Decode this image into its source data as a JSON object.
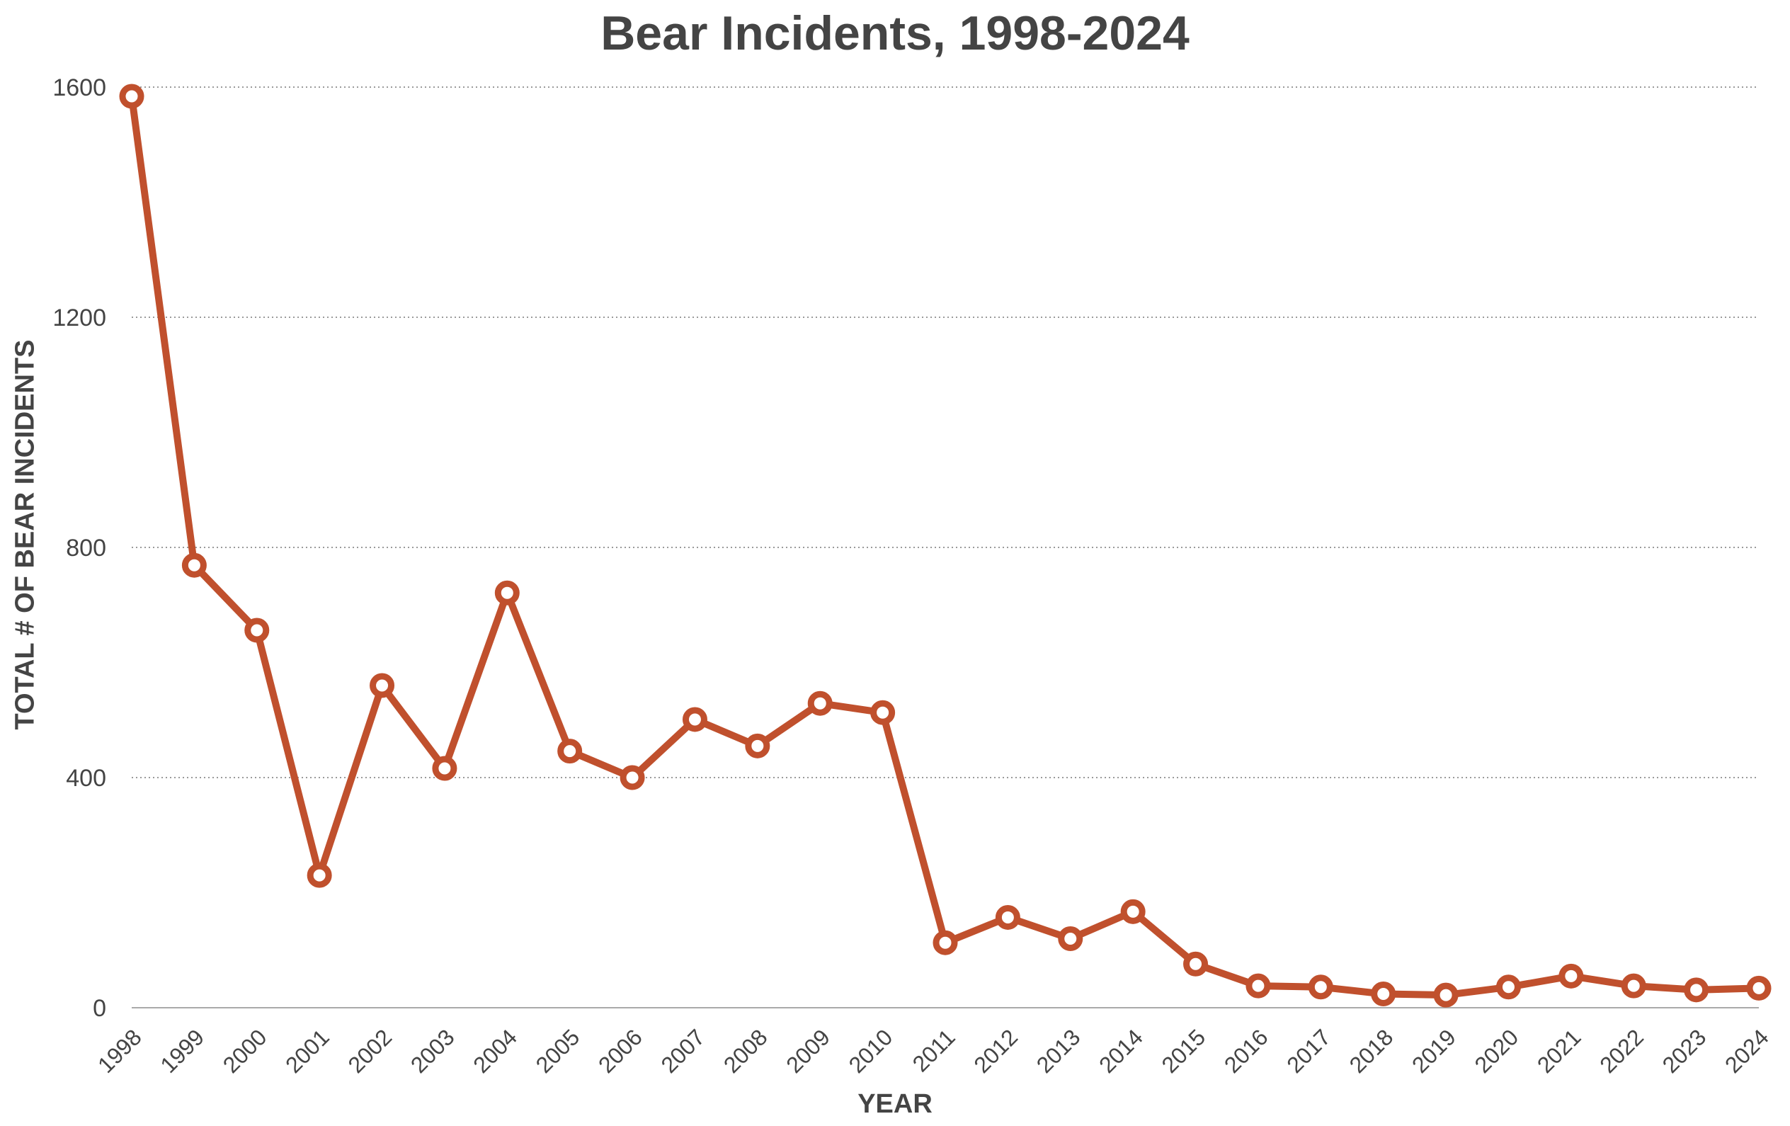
{
  "chart_data": {
    "type": "line",
    "title": "Bear Incidents, 1998-2024",
    "xlabel": "YEAR",
    "ylabel": "TOTAL # OF BEAR INCIDENTS",
    "ylim": [
      0,
      1600
    ],
    "yticks": [
      0,
      400,
      800,
      1200,
      1600
    ],
    "grid": "horizontal dotted",
    "x": [
      "1998",
      "1999",
      "2000",
      "2001",
      "2002",
      "2003",
      "2004",
      "2005",
      "2006",
      "2007",
      "2008",
      "2009",
      "2010",
      "2011",
      "2012",
      "2013",
      "2014",
      "2015",
      "2016",
      "2017",
      "2018",
      "2019",
      "2020",
      "2021",
      "2022",
      "2023",
      "2024"
    ],
    "series": [
      {
        "color": "#c0502d",
        "values": [
          1584,
          769,
          656,
          230,
          560,
          416,
          721,
          446,
          400,
          501,
          455,
          529,
          513,
          113,
          157,
          120,
          167,
          76,
          38,
          36,
          24,
          22,
          36,
          55,
          38,
          31,
          34
        ]
      }
    ]
  }
}
